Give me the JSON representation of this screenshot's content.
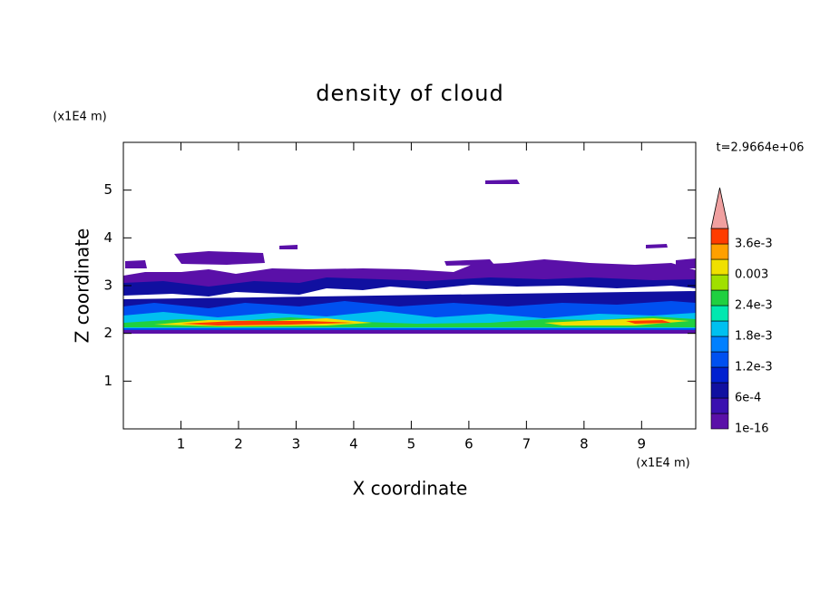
{
  "chart_data": {
    "type": "contour",
    "title": "density of cloud",
    "x_label": "X coordinate",
    "y_label": "Z coordinate",
    "x_unit": "(x1E4 m)",
    "y_unit": "(x1E4 m)",
    "time_label": "t=2.9664e+06",
    "xlim": [
      0,
      9.94
    ],
    "ylim": [
      0,
      6
    ],
    "xticks": [
      1,
      2,
      3,
      4,
      5,
      6,
      7,
      8,
      9
    ],
    "yticks": [
      1,
      2,
      3,
      4,
      5
    ],
    "colorbar": {
      "levels": [
        1e-16,
        0.0003,
        0.0006,
        0.0009,
        0.0012,
        0.0015,
        0.0018,
        0.0021,
        0.0024,
        0.0027,
        0.003,
        0.0033,
        0.0036,
        0.0039
      ],
      "colors": [
        "#5a10a8",
        "#3a10b0",
        "#1010a0",
        "#0020d0",
        "#0050f0",
        "#0080ff",
        "#00c0f0",
        "#00e8b0",
        "#20d040",
        "#a0e000",
        "#f0e000",
        "#ffa000",
        "#ff3c00"
      ],
      "extend_color": "#f0a0a0",
      "ticks": [
        {
          "value": 1e-16,
          "label": "1e-16"
        },
        {
          "value": 0.0006,
          "label": "6e-4"
        },
        {
          "value": 0.0012,
          "label": "1.2e-3"
        },
        {
          "value": 0.0018,
          "label": "1.8e-3"
        },
        {
          "value": 0.0024,
          "label": "2.4e-3"
        },
        0.003,
        {
          "value": 0.0036,
          "label": "3.6e-3"
        }
      ]
    }
  }
}
